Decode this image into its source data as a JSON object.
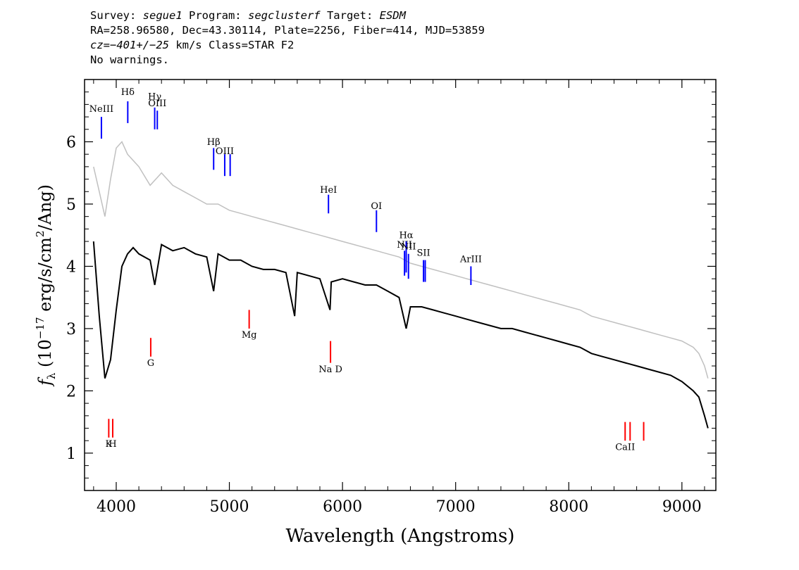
{
  "header": {
    "line1": {
      "survey_label": "Survey: ",
      "survey": "segue1",
      "program_label": " Program: ",
      "program": "segclusterf",
      "target_label": " Target: ",
      "target": "ESDM"
    },
    "line2": "RA=258.96580, Dec=43.30114, Plate=2256, Fiber=414, MJD=53859",
    "line3": {
      "cz": "cz=−401+/−25",
      "rest": " km/s Class=STAR F2"
    },
    "line4": "No warnings."
  },
  "chart_data": {
    "type": "line",
    "title": "",
    "xlabel": "Wavelength (Angstroms)",
    "ylabel_parts": {
      "f": "f",
      "sub": "λ",
      "a": " (10",
      "exp1": "−17",
      "b": " erg/s/cm",
      "exp2": "2",
      "c": "/Ang)"
    },
    "xlim": [
      3720,
      9300
    ],
    "ylim": [
      0.4,
      7.0
    ],
    "xticks": [
      4000,
      5000,
      6000,
      7000,
      8000,
      9000
    ],
    "yticks": [
      1,
      2,
      3,
      4,
      5,
      6
    ],
    "grid": false,
    "series": [
      {
        "color": "#000000",
        "x": [
          3800,
          3850,
          3900,
          3950,
          4000,
          4050,
          4100,
          4150,
          4200,
          4300,
          4340,
          4400,
          4500,
          4600,
          4700,
          4800,
          4861,
          4900,
          5000,
          5100,
          5200,
          5300,
          5400,
          5500,
          5577,
          5600,
          5700,
          5800,
          5890,
          5900,
          6000,
          6100,
          6200,
          6300,
          6400,
          6500,
          6563,
          6600,
          6700,
          6800,
          6900,
          7000,
          7100,
          7200,
          7300,
          7400,
          7500,
          7600,
          7700,
          7800,
          7900,
          8000,
          8100,
          8200,
          8300,
          8400,
          8500,
          8600,
          8700,
          8800,
          8900,
          9000,
          9100,
          9150,
          9200,
          9230
        ],
        "y": [
          4.4,
          3.2,
          2.2,
          2.5,
          3.3,
          4.0,
          4.2,
          4.3,
          4.2,
          4.1,
          3.7,
          4.35,
          4.25,
          4.3,
          4.2,
          4.15,
          3.6,
          4.2,
          4.1,
          4.1,
          4.0,
          3.95,
          3.95,
          3.9,
          3.2,
          3.9,
          3.85,
          3.8,
          3.3,
          3.75,
          3.8,
          3.75,
          3.7,
          3.7,
          3.6,
          3.5,
          3.0,
          3.35,
          3.35,
          3.3,
          3.25,
          3.2,
          3.15,
          3.1,
          3.05,
          3.0,
          3.0,
          2.95,
          2.9,
          2.85,
          2.8,
          2.75,
          2.7,
          2.6,
          2.55,
          2.5,
          2.45,
          2.4,
          2.35,
          2.3,
          2.25,
          2.15,
          2.0,
          1.9,
          1.6,
          1.4
        ]
      },
      {
        "color": "#c0c0c0",
        "x": [
          3800,
          3850,
          3900,
          3950,
          4000,
          4050,
          4100,
          4150,
          4200,
          4300,
          4400,
          4500,
          4600,
          4700,
          4800,
          4900,
          5000,
          5100,
          5200,
          5300,
          5400,
          5500,
          5600,
          5700,
          5800,
          5900,
          6000,
          6100,
          6200,
          6300,
          6400,
          6500,
          6600,
          6700,
          6800,
          6900,
          7000,
          7100,
          7200,
          7300,
          7400,
          7500,
          7600,
          7700,
          7800,
          7900,
          8000,
          8100,
          8200,
          8300,
          8400,
          8500,
          8600,
          8700,
          8800,
          8900,
          9000,
          9100,
          9150,
          9200,
          9230
        ],
        "y": [
          5.6,
          5.2,
          4.8,
          5.4,
          5.9,
          6.0,
          5.8,
          5.7,
          5.6,
          5.3,
          5.5,
          5.3,
          5.2,
          5.1,
          5.0,
          5.0,
          4.9,
          4.85,
          4.8,
          4.75,
          4.7,
          4.65,
          4.6,
          4.55,
          4.5,
          4.45,
          4.4,
          4.35,
          4.3,
          4.25,
          4.2,
          4.15,
          4.05,
          4.0,
          3.95,
          3.9,
          3.85,
          3.8,
          3.75,
          3.7,
          3.65,
          3.6,
          3.55,
          3.5,
          3.45,
          3.4,
          3.35,
          3.3,
          3.2,
          3.15,
          3.1,
          3.05,
          3.0,
          2.95,
          2.9,
          2.85,
          2.8,
          2.7,
          2.6,
          2.4,
          2.2
        ]
      }
    ],
    "emission_lines": [
      {
        "label": "NeIII",
        "x": 3869,
        "label_y": 6.48,
        "y0": 6.05,
        "y1": 6.4,
        "color": "#0000ff"
      },
      {
        "label": "Hδ",
        "x": 4102,
        "label_y": 6.75,
        "y0": 6.3,
        "y1": 6.65,
        "color": "#0000ff"
      },
      {
        "label": "Hγ",
        "x": 4340,
        "label_y": 6.68,
        "y0": 6.2,
        "y1": 6.55,
        "color": "#0000ff"
      },
      {
        "label": "OIII",
        "x": 4363,
        "label_y": 6.57,
        "y0": 6.2,
        "y1": 6.5,
        "color": "#0000ff"
      },
      {
        "label": "Hβ",
        "x": 4861,
        "label_y": 5.95,
        "y0": 5.55,
        "y1": 5.9,
        "color": "#0000ff"
      },
      {
        "label": "OIII",
        "x": 4959,
        "label_y": 5.8,
        "y0": 5.45,
        "y1": 5.8,
        "color": "#0000ff"
      },
      {
        "label": "",
        "x": 5007,
        "label_y": 5.8,
        "y0": 5.45,
        "y1": 5.8,
        "color": "#0000ff"
      },
      {
        "label": "HeI",
        "x": 5876,
        "label_y": 5.18,
        "y0": 4.85,
        "y1": 5.15,
        "color": "#0000ff"
      },
      {
        "label": "OI",
        "x": 6300,
        "label_y": 4.92,
        "y0": 4.55,
        "y1": 4.9,
        "color": "#0000ff"
      },
      {
        "label": "NII",
        "x": 6548,
        "label_y": 4.3,
        "y0": 3.85,
        "y1": 4.25,
        "color": "#0000ff"
      },
      {
        "label": "Hα",
        "x": 6563,
        "label_y": 4.45,
        "y0": 3.9,
        "y1": 4.4,
        "color": "#0000ff"
      },
      {
        "label": "NII",
        "x": 6583,
        "label_y": 4.27,
        "y0": 3.8,
        "y1": 4.2,
        "color": "#0000ff"
      },
      {
        "label": "SII",
        "x": 6716,
        "label_y": 4.17,
        "y0": 3.75,
        "y1": 4.1,
        "color": "#0000ff"
      },
      {
        "label": "",
        "x": 6731,
        "label_y": 4.17,
        "y0": 3.75,
        "y1": 4.1,
        "color": "#0000ff"
      },
      {
        "label": "ArIII",
        "x": 7135,
        "label_y": 4.07,
        "y0": 3.7,
        "y1": 4.0,
        "color": "#0000ff"
      }
    ],
    "absorption_lines": [
      {
        "label": "K",
        "x": 3934,
        "label_y": 1.1,
        "y0": 1.25,
        "y1": 1.55,
        "color": "#ff0000"
      },
      {
        "label": "H",
        "x": 3969,
        "label_y": 1.1,
        "y0": 1.25,
        "y1": 1.55,
        "color": "#ff0000"
      },
      {
        "label": "G",
        "x": 4305,
        "label_y": 2.4,
        "y0": 2.55,
        "y1": 2.85,
        "color": "#ff0000"
      },
      {
        "label": "Mg",
        "x": 5175,
        "label_y": 2.85,
        "y0": 3.0,
        "y1": 3.3,
        "color": "#ff0000"
      },
      {
        "label": "Na D",
        "x": 5894,
        "label_y": 2.3,
        "y0": 2.45,
        "y1": 2.8,
        "color": "#ff0000"
      },
      {
        "label": "CaII",
        "x": 8498,
        "label_y": 1.05,
        "y0": 1.2,
        "y1": 1.5,
        "color": "#ff0000"
      },
      {
        "label": "",
        "x": 8542,
        "label_y": 1.05,
        "y0": 1.2,
        "y1": 1.5,
        "color": "#ff0000"
      },
      {
        "label": "",
        "x": 8662,
        "label_y": 1.05,
        "y0": 1.2,
        "y1": 1.5,
        "color": "#ff0000"
      }
    ]
  }
}
